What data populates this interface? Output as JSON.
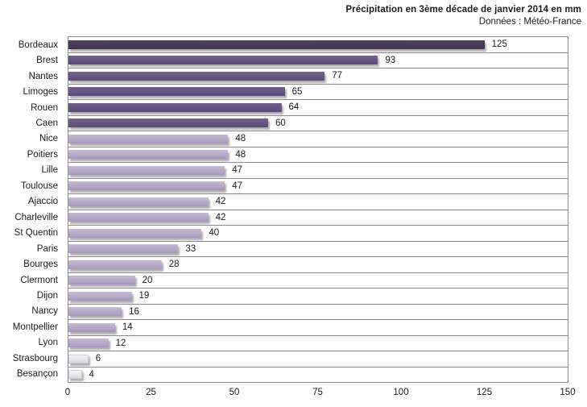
{
  "chart_data": {
    "type": "bar",
    "orientation": "horizontal",
    "title": "Précipitation en 3ème décade de janvier 2014 en mm",
    "source": "Données : Météo-France",
    "categories": [
      "Bordeaux",
      "Brest",
      "Nantes",
      "Limoges",
      "Rouen",
      "Caen",
      "Nice",
      "Poitiers",
      "Lille",
      "Toulouse",
      "Ajaccio",
      "Charleville",
      "St Quentin",
      "Paris",
      "Bourges",
      "Clermont",
      "Dijon",
      "Nancy",
      "Montpellier",
      "Lyon",
      "Strasbourg",
      "Besançon"
    ],
    "values": [
      125,
      93,
      77,
      65,
      64,
      60,
      48,
      48,
      47,
      47,
      42,
      42,
      40,
      33,
      28,
      20,
      19,
      16,
      14,
      12,
      6,
      4
    ],
    "color_tiers": [
      "dark",
      "medium",
      "medium",
      "medium",
      "medium",
      "medium",
      "light",
      "light",
      "light",
      "light",
      "light",
      "light",
      "light",
      "light",
      "light",
      "light",
      "light",
      "light",
      "light",
      "light",
      "pale",
      "pale"
    ],
    "xlim": [
      0,
      150
    ],
    "xticks": [
      0,
      25,
      50,
      75,
      100,
      125,
      150
    ],
    "legend": "none",
    "grid": "horizontal category separator lines, no vertical gridlines",
    "palette": {
      "dark": {
        "top": "#4e4160",
        "bottom": "#3e334f"
      },
      "medium": {
        "top": "#72618f",
        "bottom": "#5b4b78"
      },
      "light": {
        "top": "#c6bcd5",
        "bottom": "#a height597bd"
      },
      "pale": {
        "top": "#f5f3f7",
        "bottom": "#dcd8e4",
        "border": "#cfccd8"
      }
    },
    "separator_color": "#8c8c8c",
    "text_color": "#1a1a1a",
    "bar_value_labels": "shown at end of each bar"
  }
}
